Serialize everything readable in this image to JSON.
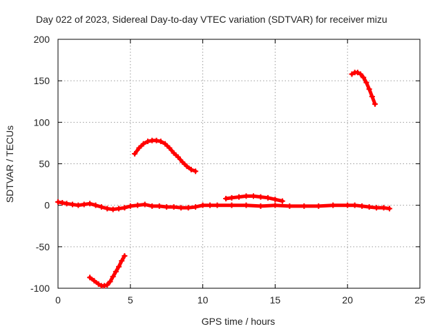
{
  "chart_data": {
    "type": "scatter",
    "title": "Day 022 of 2023, Sidereal Day-to-day VTEC variation (SDTVAR) for receiver mizu",
    "xlabel": "GPS time / hours",
    "ylabel": "SDTVAR / TECUs",
    "xlim": [
      0,
      25
    ],
    "ylim": [
      -100,
      200
    ],
    "xticks": [
      0,
      5,
      10,
      15,
      20,
      25
    ],
    "yticks": [
      -100,
      -50,
      0,
      50,
      100,
      150,
      200
    ],
    "grid": true,
    "marker_color": "#ff0000",
    "series": [
      {
        "name": "baseline",
        "x": [
          0.0,
          0.3,
          0.6,
          1.0,
          1.4,
          1.8,
          2.2,
          2.6,
          3.0,
          3.4,
          3.8,
          4.2,
          4.6,
          5.0,
          5.5,
          6.0,
          6.5,
          7.0,
          7.5,
          8.0,
          8.5,
          9.0,
          9.5,
          10.0,
          10.5,
          11.0,
          12.0,
          13.0,
          14.0,
          15.0,
          16.0,
          17.0,
          18.0,
          19.0,
          20.0,
          20.5,
          21.0,
          21.5,
          22.0,
          22.5,
          22.9
        ],
        "y": [
          4,
          3,
          2,
          1,
          0,
          1,
          2,
          0,
          -2,
          -4,
          -5,
          -4,
          -3,
          -1,
          0,
          1,
          -1,
          -1,
          -2,
          -2,
          -3,
          -3,
          -2,
          0,
          0,
          0,
          0,
          0,
          -1,
          0,
          -1,
          -1,
          -1,
          0,
          0,
          0,
          -1,
          -2,
          -3,
          -3,
          -4
        ]
      },
      {
        "name": "arc-negative",
        "x": [
          2.2,
          2.5,
          2.8,
          3.0,
          3.2,
          3.4,
          3.6,
          3.8,
          4.0,
          4.2,
          4.4,
          4.6
        ],
        "y": [
          -87,
          -91,
          -95,
          -97,
          -97,
          -96,
          -92,
          -86,
          -80,
          -74,
          -67,
          -61
        ]
      },
      {
        "name": "arc-peak",
        "x": [
          5.3,
          5.6,
          5.9,
          6.2,
          6.5,
          6.8,
          7.1,
          7.4,
          7.7,
          8.0,
          8.3,
          8.6,
          8.9,
          9.2,
          9.5
        ],
        "y": [
          62,
          69,
          74,
          77,
          78,
          78,
          77,
          74,
          69,
          63,
          58,
          52,
          47,
          43,
          41
        ]
      },
      {
        "name": "arc-hump",
        "x": [
          11.6,
          12.0,
          12.5,
          13.0,
          13.5,
          14.0,
          14.5,
          15.0,
          15.5
        ],
        "y": [
          8,
          9,
          10,
          11,
          11,
          10,
          9,
          7,
          5
        ]
      },
      {
        "name": "arc-high",
        "x": [
          20.3,
          20.5,
          20.7,
          20.9,
          21.1,
          21.3,
          21.5,
          21.7,
          21.9
        ],
        "y": [
          158,
          160,
          160,
          158,
          154,
          148,
          140,
          131,
          122
        ]
      }
    ]
  }
}
